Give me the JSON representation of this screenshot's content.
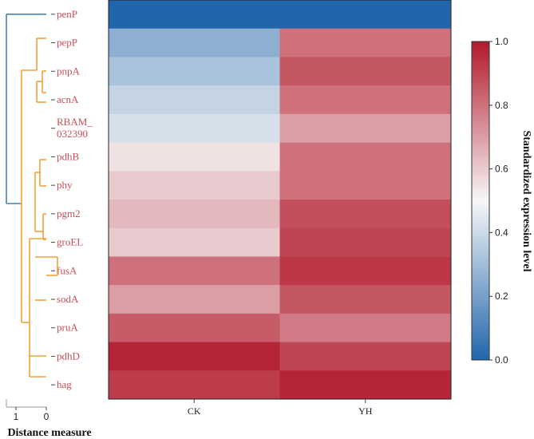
{
  "chart_data": {
    "type": "heatmap",
    "columns": [
      "CK",
      "YH"
    ],
    "rows": [
      "penP",
      "pepP",
      "pnpA",
      "acnA",
      "RBAM_\n032390",
      "pdhB",
      "phy",
      "pgm2",
      "groEL",
      "fusA",
      "sodA",
      "pruA",
      "pdhD",
      "hag"
    ],
    "values": [
      [
        0.0,
        0.0
      ],
      [
        0.25,
        0.8
      ],
      [
        0.32,
        0.86
      ],
      [
        0.38,
        0.8
      ],
      [
        0.42,
        0.7
      ],
      [
        0.55,
        0.8
      ],
      [
        0.6,
        0.8
      ],
      [
        0.64,
        0.88
      ],
      [
        0.6,
        0.9
      ],
      [
        0.8,
        0.93
      ],
      [
        0.7,
        0.86
      ],
      [
        0.85,
        0.78
      ],
      [
        0.97,
        0.9
      ],
      [
        0.92,
        0.97
      ]
    ],
    "colormap": [
      "#2166ac",
      "#f7f7f7",
      "#b2182b"
    ],
    "vmin": 0.0,
    "vmax": 1.0,
    "colorbar": {
      "label": "Standardized expression level",
      "ticks": [
        "0.0",
        "0.2",
        "0.4",
        "0.6",
        "0.8",
        "1.0"
      ]
    },
    "dendrogram": {
      "label": "Distance measure",
      "ticks": [
        "1",
        "0"
      ],
      "colors": {
        "outer": "#4682b4",
        "cluster": "#f2a23a",
        "axis": "#aaaaaa"
      }
    }
  }
}
